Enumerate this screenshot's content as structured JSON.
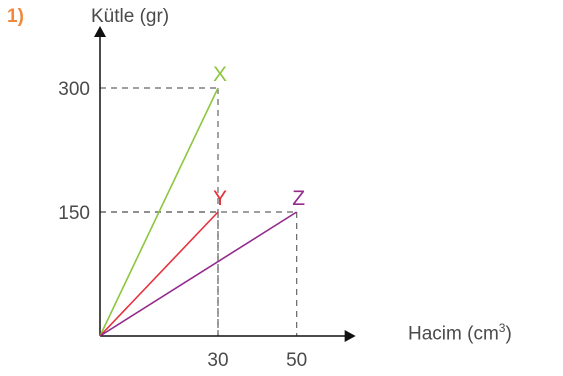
{
  "problem_number": "1)",
  "chart_data": {
    "type": "line",
    "xlabel": "Hacim (cm³)",
    "xlabel_base": "Hacim (cm",
    "xlabel_sup": "3",
    "xlabel_end": ")",
    "ylabel": "Kütle (gr)",
    "x_ticks": [
      "30",
      "50"
    ],
    "y_ticks": [
      "300",
      "150"
    ],
    "xlim": [
      0,
      65
    ],
    "ylim": [
      0,
      375
    ],
    "grid": false,
    "guides": "dashed",
    "series": [
      {
        "name": "X",
        "color": "#8cc63f",
        "x": [
          0,
          30
        ],
        "y": [
          0,
          300
        ]
      },
      {
        "name": "Y",
        "color": "#e6323e",
        "x": [
          0,
          30
        ],
        "y": [
          0,
          150
        ]
      },
      {
        "name": "Z",
        "color": "#922b8c",
        "x": [
          0,
          50
        ],
        "y": [
          0,
          150
        ]
      }
    ]
  }
}
